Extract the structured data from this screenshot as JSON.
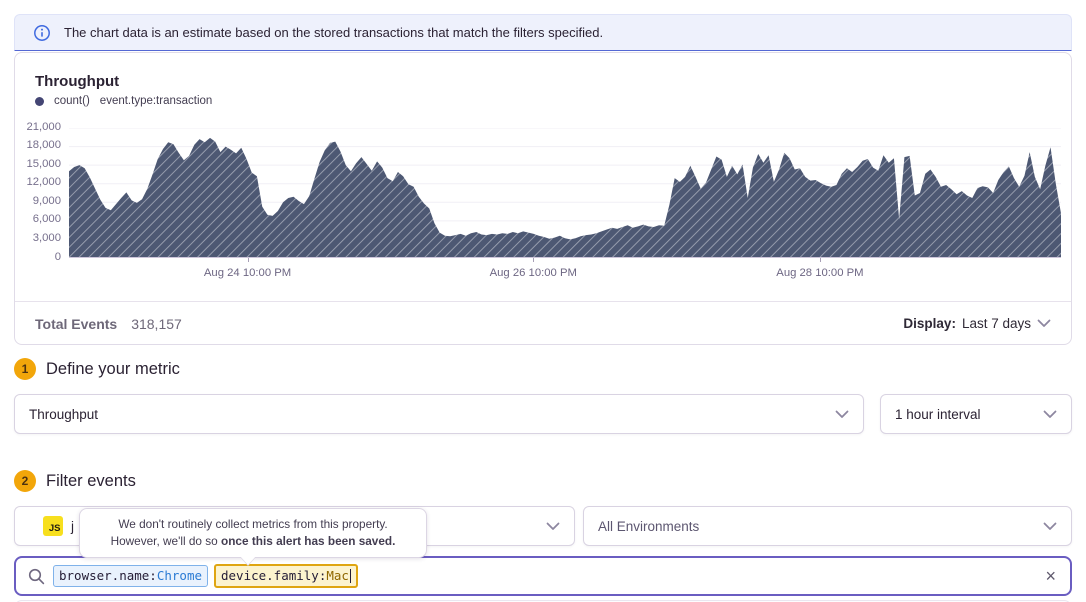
{
  "banner": {
    "text": "The chart data is an estimate based on the stored transactions that match the filters specified."
  },
  "chart_panel": {
    "title": "Throughput",
    "legend": {
      "series_label": "count()",
      "query_label": "event.type:transaction"
    },
    "footer": {
      "total_label": "Total Events",
      "total_value": "318,157",
      "display_label": "Display:",
      "display_value": "Last 7 days"
    }
  },
  "chart_data": {
    "type": "area",
    "title": "Throughput",
    "ylabel": "count()",
    "ylim": [
      0,
      21000
    ],
    "yticks": [
      0,
      3000,
      6000,
      9000,
      12000,
      15000,
      18000,
      21000
    ],
    "ytick_labels": [
      "0",
      "3,000",
      "6,000",
      "9,000",
      "12,000",
      "15,000",
      "18,000",
      "21,000"
    ],
    "xticks": [
      {
        "label": "Aug 24 10:00 PM",
        "pos": 0.18
      },
      {
        "label": "Aug 26 10:00 PM",
        "pos": 0.468
      },
      {
        "label": "Aug 28 10:00 PM",
        "pos": 0.757
      }
    ],
    "grid": true,
    "legend_position": "top-left",
    "area_color": "#4d5873",
    "hatch_color": "rgba(255,255,255,0.45)",
    "series": [
      {
        "name": "count() event.type:transaction",
        "values": [
          14000,
          14700,
          15000,
          14500,
          13000,
          11200,
          9400,
          8100,
          7700,
          8700,
          9700,
          10600,
          9300,
          8900,
          9500,
          11200,
          13500,
          16000,
          17600,
          18700,
          18400,
          17000,
          15800,
          16500,
          18300,
          19200,
          18700,
          19400,
          18800,
          17100,
          18000,
          17500,
          16900,
          17800,
          16000,
          13800,
          13200,
          8300,
          7000,
          6800,
          7600,
          9000,
          9700,
          9900,
          9200,
          8700,
          10000,
          12800,
          15500,
          17400,
          18600,
          18800,
          17200,
          15000,
          14000,
          15300,
          16300,
          15200,
          14100,
          15600,
          14600,
          12900,
          12400,
          13900,
          13200,
          11900,
          11500,
          9900,
          8800,
          8000,
          5600,
          4100,
          3600,
          3500,
          3700,
          3900,
          3600,
          4000,
          4200,
          3800,
          3700,
          3900,
          3800,
          4000,
          3900,
          4200,
          4000,
          4300,
          4100,
          3900,
          3600,
          3400,
          3100,
          3300,
          3600,
          3200,
          3000,
          3200,
          3500,
          3700,
          3800,
          4000,
          4300,
          4600,
          4900,
          4700,
          5000,
          5300,
          4900,
          5100,
          5400,
          5100,
          5000,
          5300,
          5200,
          8600,
          12900,
          12300,
          13100,
          14900,
          13100,
          11200,
          12200,
          14300,
          16400,
          15900,
          13100,
          14900,
          13500,
          15100,
          9700,
          14600,
          16800,
          15400,
          16600,
          12300,
          14300,
          17000,
          16100,
          14300,
          14500,
          13100,
          12500,
          12600,
          12100,
          11700,
          11500,
          11800,
          13600,
          14500,
          13900,
          14700,
          15700,
          16000,
          14600,
          14100,
          16600,
          15400,
          16100,
          6300,
          16300,
          16500,
          10100,
          10500,
          13600,
          14300,
          13100,
          11500,
          11800,
          11100,
          10300,
          10800,
          10100,
          9700,
          11300,
          11600,
          11400,
          10500,
          12600,
          13900,
          14800,
          12900,
          11500,
          13300,
          17100,
          13100,
          11100,
          14900,
          17900,
          12000,
          7200
        ]
      }
    ]
  },
  "sections": [
    {
      "number": "1",
      "title": "Define your metric"
    },
    {
      "number": "2",
      "title": "Filter events"
    }
  ],
  "metric_controls": {
    "metric_select": "Throughput",
    "interval_select": "1 hour interval"
  },
  "filter_controls": {
    "project_badge": "JS",
    "project_label": "j",
    "environment_select": "All Environments"
  },
  "tooltip": {
    "line1": "We don't routinely collect metrics from this property.",
    "line2_prefix": "However, we'll do so ",
    "line2_bold": "once this alert has been saved."
  },
  "search": {
    "tokens": [
      {
        "key": "browser.name:",
        "value": "Chrome"
      },
      {
        "key": "device.family:",
        "value": "Mac"
      }
    ],
    "clear_icon": "×"
  },
  "colors": {
    "accent_purple": "#6a5dc1",
    "banner_border_blue": "#5468d4",
    "badge_amber": "#f2a60a",
    "token_blue": "#2b7bd4",
    "token_amber_border": "#dfa511",
    "chart_area": "#4d5873"
  }
}
